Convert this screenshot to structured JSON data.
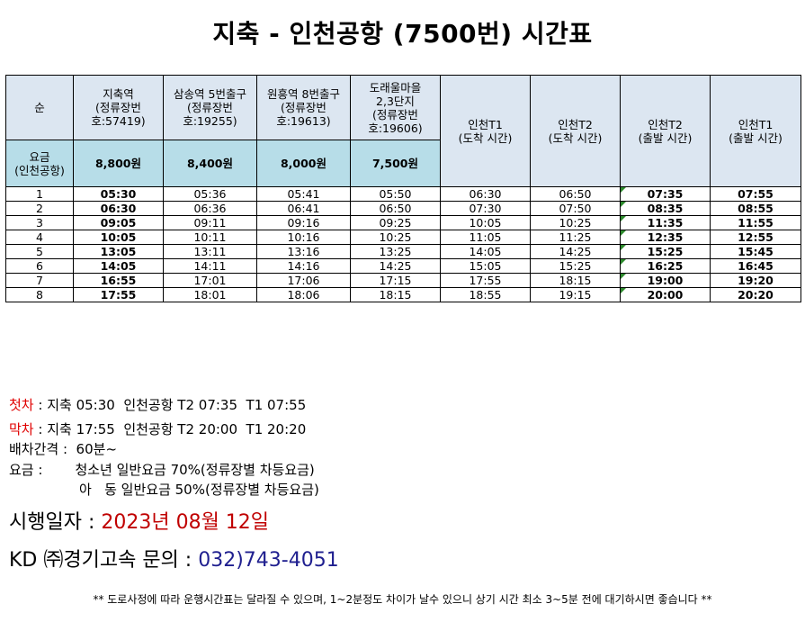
{
  "title": "지축 - 인천공항 (7500번) 시간표",
  "table": {
    "col_order_label": "순",
    "columns": [
      "지축역\n(정류장번\n호:57419)",
      "삼송역 5번출구\n(정류장번\n호:19255)",
      "원흥역 8번출구\n(정류장번\n호:19613)",
      "도래울마을\n2,3단지\n(정류장번\n호:19606)",
      "인천T1\n(도착 시간)",
      "인천T2\n(도착 시간)",
      "인천T2\n(출발 시간)",
      "인천T1\n(출발 시간)"
    ],
    "fare_label": "요금\n(인천공항)",
    "fares": [
      "8,800원",
      "8,400원",
      "8,000원",
      "7,500원"
    ],
    "rows": [
      [
        "1",
        "05:30",
        "05:36",
        "05:41",
        "05:50",
        "06:30",
        "06:50",
        "07:35",
        "07:55"
      ],
      [
        "2",
        "06:30",
        "06:36",
        "06:41",
        "06:50",
        "07:30",
        "07:50",
        "08:35",
        "08:55"
      ],
      [
        "3",
        "09:05",
        "09:11",
        "09:16",
        "09:25",
        "10:05",
        "10:25",
        "11:35",
        "11:55"
      ],
      [
        "4",
        "10:05",
        "10:11",
        "10:16",
        "10:25",
        "11:05",
        "11:25",
        "12:35",
        "12:55"
      ],
      [
        "5",
        "13:05",
        "13:11",
        "13:16",
        "13:25",
        "14:05",
        "14:25",
        "15:25",
        "15:45"
      ],
      [
        "6",
        "14:05",
        "14:11",
        "14:16",
        "14:25",
        "15:05",
        "15:25",
        "16:25",
        "16:45"
      ],
      [
        "7",
        "16:55",
        "17:01",
        "17:06",
        "17:15",
        "17:55",
        "18:15",
        "19:00",
        "19:20"
      ],
      [
        "8",
        "17:55",
        "18:01",
        "18:06",
        "18:15",
        "18:55",
        "19:15",
        "20:00",
        "20:20"
      ]
    ]
  },
  "notes": {
    "first_label": "첫차",
    "first_text": " : 지축 05:30  인천공항 T2 07:35  T1 07:55",
    "last_label": "막차",
    "last_text": " : 지축 17:55  인천공항 T2 20:00  T1 20:20",
    "interval": "배차간격 :  60분~",
    "fare_label": "요금 :",
    "fare_youth": "청소년 일반요금 70%(정류장별 차등요금)",
    "fare_child": "아   동 일반요금 50%(정류장별 차등요금)",
    "effective_label": "시행일자 : ",
    "effective_date": "2023년 08월 12일",
    "company_label": "KD ㈜경기고속 문의 : ",
    "company_phone": "032)743-4051",
    "footer": "** 도로사정에 따라 운행시간표는 달라질 수 있으며, 1~2분정도 차이가 날수 있으니 상기 시간 최소 3~5분 전에 대기하시면 좋습니다 **"
  },
  "colors": {
    "header_blue": "#dce6f1",
    "header_teal": "#b7dde8",
    "accent_red": "#e00000",
    "date_red": "#c00000",
    "phone_navy": "#1f1f8f"
  }
}
